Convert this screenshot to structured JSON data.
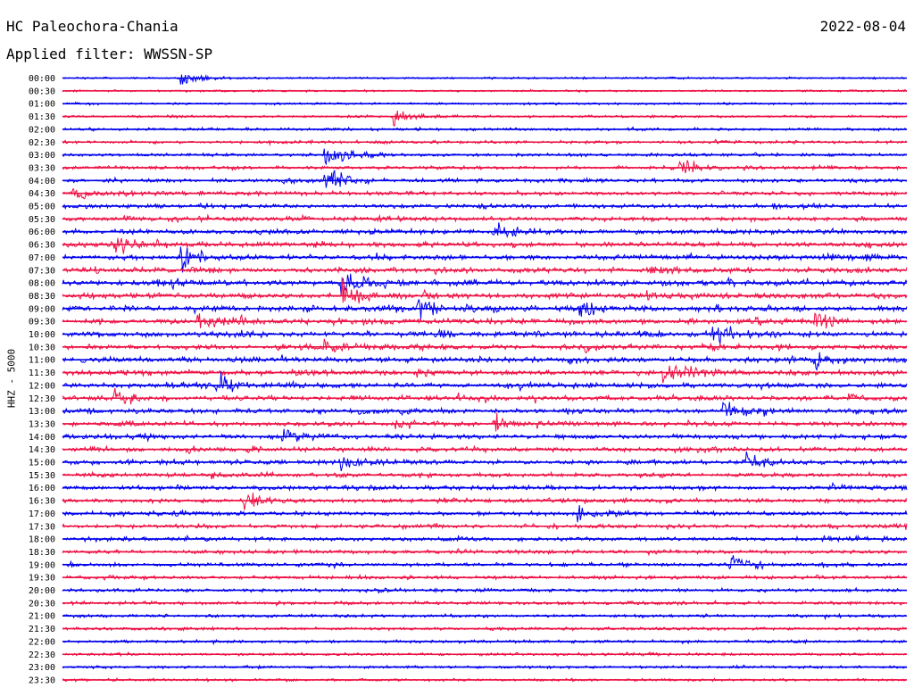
{
  "header": {
    "station": "HC Paleochora-Chania",
    "date": "2022-08-04",
    "filter": "Applied filter: WWSSN-SP"
  },
  "colors": {
    "trace_a": "#0000ee",
    "trace_b": "#ee1144",
    "background": "#ffffff"
  },
  "chart_data": {
    "type": "line",
    "title": "HC Paleochora-Chania",
    "subtitle": "Applied filter: WWSSN-SP",
    "ylabel": "HHZ - 5000",
    "xlabel": "",
    "grid": false,
    "legend": "none",
    "rows": [
      "00:00",
      "00:30",
      "01:00",
      "01:30",
      "02:00",
      "02:30",
      "03:00",
      "03:30",
      "04:00",
      "04:30",
      "05:00",
      "05:30",
      "06:00",
      "06:30",
      "07:00",
      "07:30",
      "08:00",
      "08:30",
      "09:00",
      "09:30",
      "10:00",
      "10:30",
      "11:00",
      "11:30",
      "12:00",
      "12:30",
      "13:00",
      "13:30",
      "14:00",
      "14:30",
      "15:00",
      "15:30",
      "16:00",
      "16:30",
      "17:00",
      "17:30",
      "18:00",
      "18:30",
      "19:00",
      "19:30",
      "20:00",
      "20:30",
      "21:00",
      "21:30",
      "22:00",
      "22:30",
      "23:00",
      "23:30"
    ],
    "row_colors": [
      "trace_a",
      "trace_b"
    ],
    "activity": [
      0.12,
      0.15,
      0.18,
      0.22,
      0.3,
      0.35,
      0.38,
      0.42,
      0.48,
      0.5,
      0.55,
      0.6,
      0.65,
      0.7,
      0.72,
      0.75,
      0.78,
      0.8,
      0.8,
      0.78,
      0.78,
      0.75,
      0.75,
      0.72,
      0.7,
      0.7,
      0.68,
      0.66,
      0.65,
      0.62,
      0.6,
      0.58,
      0.58,
      0.55,
      0.55,
      0.52,
      0.5,
      0.48,
      0.45,
      0.42,
      0.4,
      0.38,
      0.36,
      0.34,
      0.32,
      0.3,
      0.28,
      0.26
    ],
    "events": [
      {
        "row": 0,
        "t": 0.13,
        "amp": 0.9
      },
      {
        "row": 3,
        "t": 0.38,
        "amp": 0.9
      },
      {
        "row": 6,
        "t": 0.3,
        "amp": 1.5
      },
      {
        "row": 7,
        "t": 0.72,
        "amp": 1.2
      },
      {
        "row": 8,
        "t": 0.3,
        "amp": 1.6
      },
      {
        "row": 9,
        "t": 0.0,
        "amp": 0.9
      },
      {
        "row": 12,
        "t": 0.5,
        "amp": 0.9
      },
      {
        "row": 13,
        "t": 0.05,
        "amp": 1.1
      },
      {
        "row": 14,
        "t": 0.13,
        "amp": 1.2
      },
      {
        "row": 16,
        "t": 0.32,
        "amp": 1.4
      },
      {
        "row": 17,
        "t": 0.32,
        "amp": 1.3
      },
      {
        "row": 18,
        "t": 0.41,
        "amp": 1.3
      },
      {
        "row": 18,
        "t": 0.6,
        "amp": 0.9
      },
      {
        "row": 19,
        "t": 0.15,
        "amp": 0.9
      },
      {
        "row": 19,
        "t": 0.88,
        "amp": 1.0
      },
      {
        "row": 20,
        "t": 0.76,
        "amp": 1.2
      },
      {
        "row": 21,
        "t": 0.3,
        "amp": 1.0
      },
      {
        "row": 22,
        "t": 0.88,
        "amp": 0.9
      },
      {
        "row": 23,
        "t": 0.7,
        "amp": 1.1
      },
      {
        "row": 24,
        "t": 0.17,
        "amp": 1.3
      },
      {
        "row": 25,
        "t": 0.05,
        "amp": 0.9
      },
      {
        "row": 26,
        "t": 0.77,
        "amp": 1.1
      },
      {
        "row": 27,
        "t": 0.5,
        "amp": 1.0
      },
      {
        "row": 28,
        "t": 0.25,
        "amp": 0.8
      },
      {
        "row": 30,
        "t": 0.32,
        "amp": 1.0
      },
      {
        "row": 30,
        "t": 0.8,
        "amp": 1.0
      },
      {
        "row": 33,
        "t": 0.2,
        "amp": 1.1
      },
      {
        "row": 34,
        "t": 0.6,
        "amp": 1.0
      },
      {
        "row": 38,
        "t": 0.78,
        "amp": 0.9
      }
    ]
  }
}
